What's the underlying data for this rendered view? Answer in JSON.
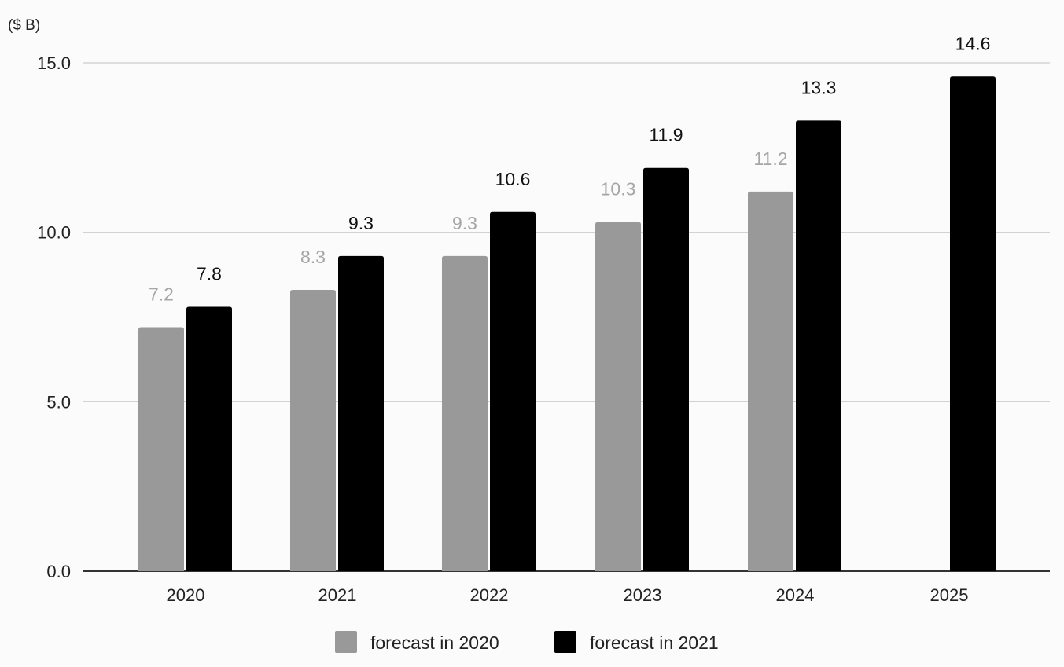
{
  "chart_data": {
    "type": "bar",
    "ylabel": "($ B)",
    "ylim": [
      0,
      15
    ],
    "yticks": [
      "0.0",
      "5.0",
      "10.0",
      "15.0"
    ],
    "categories": [
      "2020",
      "2021",
      "2022",
      "2023",
      "2024",
      "2025"
    ],
    "series": [
      {
        "name": "forecast in 2020",
        "color": "#999999",
        "label_color": "#a6a6a6",
        "values": [
          7.2,
          8.3,
          9.3,
          10.3,
          11.2,
          null
        ],
        "labels": [
          "7.2",
          "8.3",
          "9.3",
          "10.3",
          "11.2",
          null
        ]
      },
      {
        "name": "forecast in 2021",
        "color": "#000000",
        "label_color": "#111111",
        "values": [
          7.8,
          9.3,
          10.6,
          11.9,
          13.3,
          14.6
        ],
        "labels": [
          "7.8",
          "9.3",
          "10.6",
          "11.9",
          "13.3",
          "14.6"
        ]
      }
    ],
    "grid": true,
    "legend_position": "bottom-center"
  }
}
